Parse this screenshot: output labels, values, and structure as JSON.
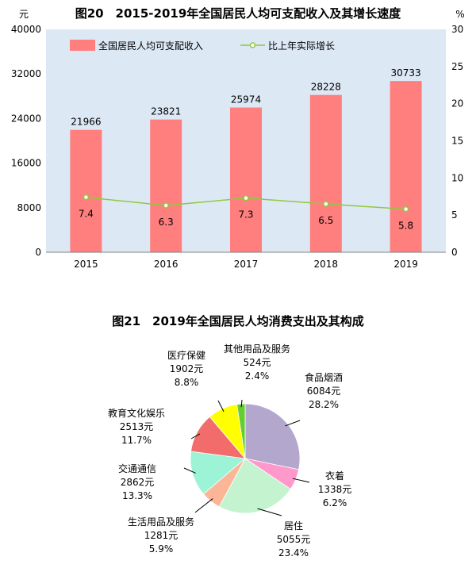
{
  "chart_data": [
    {
      "type": "bar",
      "title": "图20　2015-2019年全国居民人均可支配收入及其增长速度",
      "categories": [
        "2015",
        "2016",
        "2017",
        "2018",
        "2019"
      ],
      "series": [
        {
          "name": "全国居民人均可支配收入",
          "type": "bar",
          "axis": "left",
          "color": "#ff7f7f",
          "values": [
            21966,
            23821,
            25974,
            28228,
            30733
          ],
          "labels": [
            "21966",
            "23821",
            "25974",
            "28228",
            "30733"
          ]
        },
        {
          "name": "比上年实际增长",
          "type": "line",
          "axis": "right",
          "color": "#92c83e",
          "values": [
            7.4,
            6.3,
            7.3,
            6.5,
            5.8
          ],
          "labels": [
            "7.4",
            "6.3",
            "7.3",
            "6.5",
            "5.8"
          ]
        }
      ],
      "yunit_left": "元",
      "yunit_right": "%",
      "ylim": [
        0,
        40000
      ],
      "ylim_right": [
        0,
        30
      ],
      "yticks_left": [
        "0",
        "8000",
        "16000",
        "24000",
        "32000",
        "40000"
      ],
      "yticks_right": [
        "0",
        "5",
        "10",
        "15",
        "20",
        "25",
        "30"
      ],
      "background": "#dde8f5",
      "legend": "top"
    },
    {
      "type": "pie",
      "title": "图21　2019年全国居民人均消费支出及其构成",
      "slices": [
        {
          "name": "食品烟酒",
          "amount": "6084元",
          "percent": "28.2%",
          "value": 28.2,
          "color": "#b4a7cd"
        },
        {
          "name": "衣着",
          "amount": "1338元",
          "percent": "6.2%",
          "value": 6.2,
          "color": "#ff99cc"
        },
        {
          "name": "居住",
          "amount": "5055元",
          "percent": "23.4%",
          "value": 23.4,
          "color": "#c4f3cf"
        },
        {
          "name": "生活用品及服务",
          "amount": "1281元",
          "percent": "5.9%",
          "value": 5.9,
          "color": "#fab697"
        },
        {
          "name": "交通通信",
          "amount": "2862元",
          "percent": "13.3%",
          "value": 13.3,
          "color": "#9df3d5"
        },
        {
          "name": "教育文化娱乐",
          "amount": "2513元",
          "percent": "11.7%",
          "value": 11.7,
          "color": "#f26c6c"
        },
        {
          "name": "医疗保健",
          "amount": "1902元",
          "percent": "8.8%",
          "value": 8.8,
          "color": "#ffff00"
        },
        {
          "name": "其他用品及服务",
          "amount": "524元",
          "percent": "2.4%",
          "value": 2.4,
          "color": "#66cc33"
        }
      ]
    }
  ]
}
